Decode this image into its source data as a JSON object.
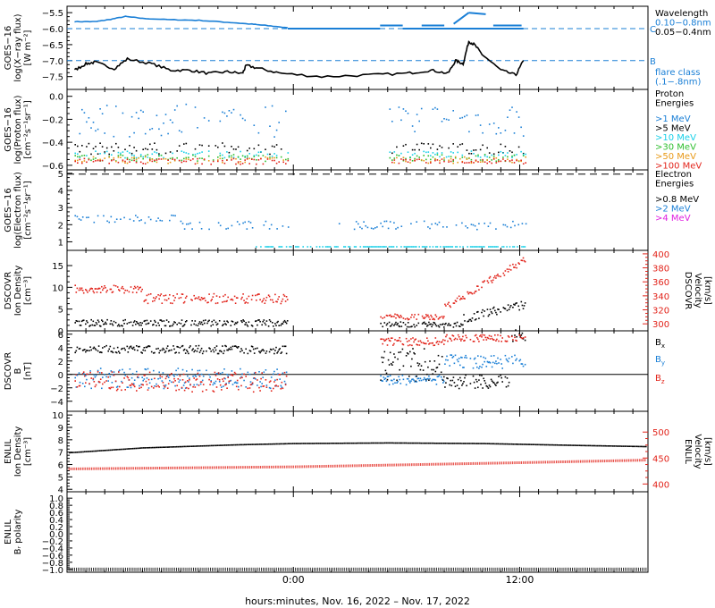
{
  "figure": {
    "xlabel": "hours:minutes, Nov. 16, 2022 – Nov. 17, 2022",
    "x_ticks": [
      "0:00",
      "12:00"
    ]
  },
  "colors": {
    "blue": "#1a7fd6",
    "cyan": "#19d0e8",
    "green": "#2fbf2f",
    "orange": "#e89a18",
    "red": "#e2231a",
    "magenta": "#e020e0",
    "black": "#000000"
  },
  "chart_data": [
    {
      "type": "line",
      "panel": "xray",
      "ylabel": [
        "GOES−16",
        "log(X−ray flux)",
        "[W m⁻²]"
      ],
      "y_ticks": [
        "−5.5",
        "−6.0",
        "−6.5",
        "−7.0",
        "−7.5"
      ],
      "ylim": [
        -7.9,
        -5.3
      ],
      "reference_lines": [
        {
          "y": -6.0,
          "label": "C"
        },
        {
          "y": -7.0,
          "label": "B"
        }
      ],
      "legend_title": "Wavelength",
      "series": [
        {
          "name": "0.10−0.8nm",
          "color": "#1a7fd6",
          "points": [
            [
              -11.6,
              -5.78
            ],
            [
              -10.5,
              -5.78
            ],
            [
              -9.8,
              -5.72
            ],
            [
              -8.9,
              -5.62
            ],
            [
              -8.0,
              -5.68
            ],
            [
              -6.5,
              -5.72
            ],
            [
              -5.0,
              -5.74
            ],
            [
              -3.5,
              -5.8
            ],
            [
              -2.2,
              -5.86
            ],
            [
              -1.5,
              -5.9
            ],
            [
              -0.3,
              -5.97
            ]
          ]
        },
        {
          "name": "0.05−0.4nm",
          "color": "#000000",
          "points": [
            [
              -11.6,
              -7.3
            ],
            [
              -11.0,
              -7.1
            ],
            [
              -10.5,
              -7.05
            ],
            [
              -9.5,
              -7.25
            ],
            [
              -8.8,
              -6.95
            ],
            [
              -7.5,
              -7.1
            ],
            [
              -6.5,
              -7.3
            ],
            [
              -5.5,
              -7.3
            ],
            [
              -4.5,
              -7.4
            ],
            [
              -3.5,
              -7.35
            ],
            [
              -2.7,
              -7.4
            ],
            [
              -2.5,
              -7.15
            ],
            [
              -1.8,
              -7.25
            ],
            [
              -0.6,
              -7.4
            ],
            [
              1.5,
              -7.5
            ],
            [
              4.0,
              -7.45
            ],
            [
              6.0,
              -7.4
            ],
            [
              7.3,
              -7.3
            ],
            [
              8.2,
              -7.4
            ],
            [
              8.6,
              -7.0
            ],
            [
              9.0,
              -7.1
            ],
            [
              9.3,
              -6.4
            ],
            [
              9.6,
              -6.5
            ],
            [
              10.0,
              -6.8
            ],
            [
              11.0,
              -7.3
            ],
            [
              11.8,
              -7.45
            ],
            [
              12.2,
              -7.0
            ]
          ]
        }
      ],
      "segments": [
        {
          "color": "#1a7fd6",
          "points": [
            [
              4.6,
              -5.9
            ],
            [
              5.8,
              -5.9
            ]
          ]
        },
        {
          "color": "#1a7fd6",
          "points": [
            [
              6.8,
              -5.9
            ],
            [
              8.0,
              -5.9
            ]
          ]
        },
        {
          "color": "#1a7fd6",
          "points": [
            [
              8.5,
              -5.85
            ],
            [
              9.3,
              -5.5
            ]
          ]
        },
        {
          "color": "#1a7fd6",
          "points": [
            [
              9.3,
              -5.5
            ],
            [
              10.2,
              -5.55
            ]
          ]
        },
        {
          "color": "#1a7fd6",
          "points": [
            [
              10.6,
              -5.9
            ],
            [
              12.1,
              -5.9
            ]
          ]
        },
        {
          "color": "#1a7fd6",
          "points": [
            [
              -0.3,
              -6.0
            ],
            [
              4.6,
              -6.0
            ]
          ]
        },
        {
          "color": "#1a7fd6",
          "points": [
            [
              5.8,
              -6.0
            ],
            [
              12.2,
              -6.0
            ]
          ]
        }
      ],
      "flare_class_label": [
        "flare class",
        "(.1−.8nm)"
      ]
    },
    {
      "type": "scatter",
      "panel": "proton",
      "ylabel": [
        "GOES−16",
        "log(Proton flux)",
        "[cm⁻²s⁻¹sr⁻¹]"
      ],
      "y_ticks": [
        "0.0",
        "−0.2",
        "−0.4",
        "−0.6"
      ],
      "y_tick_values": [
        0.0,
        -0.2,
        -0.4,
        -0.6
      ],
      "ylim": [
        -0.64,
        0.06
      ],
      "legend_title": [
        "Proton",
        "Energies"
      ],
      "series": [
        {
          "name": ">1 MeV",
          "color": "#1a7fd6",
          "center": -0.2,
          "spread": 0.15
        },
        {
          "name": ">5 MeV",
          "color": "#000000",
          "center": -0.45,
          "spread": 0.05
        },
        {
          "name": ">10 MeV",
          "color": "#19d0e8",
          "center": -0.5,
          "spread": 0.03
        },
        {
          "name": ">30 MeV",
          "color": "#2fbf2f",
          "center": -0.53,
          "spread": 0.03
        },
        {
          "name": ">50 MeV",
          "color": "#e89a18",
          "center": -0.55,
          "spread": 0.03
        },
        {
          "name": ">100 MeV",
          "color": "#e2231a",
          "center": -0.56,
          "spread": 0.025
        }
      ]
    },
    {
      "type": "scatter",
      "panel": "electron",
      "ylabel": [
        "GOES−16",
        "log(Electron flux)",
        "[cm⁻²s⁻¹sr⁻¹]"
      ],
      "y_ticks": [
        "5",
        "4",
        "3",
        "2",
        "1"
      ],
      "y_tick_values": [
        5,
        4,
        3,
        2,
        1
      ],
      "ylim": [
        0.5,
        5.2
      ],
      "reference_lines": [
        {
          "y": 4.95
        }
      ],
      "legend_title": [
        "Electron",
        "Energies"
      ],
      "series": [
        {
          "name": ">0.8 MeV",
          "color": "#000000",
          "center": 4.95,
          "spread": 0
        },
        {
          "name": ">2 MeV",
          "color": "#1a7fd6",
          "center": 2.0,
          "spread": 0.3
        },
        {
          "name": ">4 MeV",
          "color": "#e020e0",
          "center": 0.6,
          "spread": 0
        }
      ]
    },
    {
      "type": "scatter",
      "panel": "dscovr_density",
      "ylabel": [
        "DSCOVR",
        "Ion Density",
        "[cm⁻³]"
      ],
      "y_ticks": [
        "15",
        "10",
        "5",
        "0"
      ],
      "y_tick_values": [
        15,
        10,
        5,
        0
      ],
      "ylim": [
        0,
        18.5
      ],
      "right_ylabel": [
        "DSCOVR",
        "Velocity",
        "[km/s]"
      ],
      "right_ticks": [
        "400",
        "380",
        "360",
        "340",
        "320",
        "300"
      ],
      "right_tick_values": [
        400,
        380,
        360,
        340,
        320,
        300
      ],
      "right_ylim": [
        290,
        405
      ],
      "series": [
        {
          "name": "Ion Density",
          "color": "#000000",
          "axis": "left"
        },
        {
          "name": "Velocity",
          "color": "#e2231a",
          "axis": "right"
        }
      ]
    },
    {
      "type": "scatter",
      "panel": "dscovr_b",
      "ylabel": [
        "DSCOVR",
        "B",
        "[nT]"
      ],
      "y_ticks": [
        "6",
        "4",
        "2",
        "0",
        "−2",
        "−4"
      ],
      "y_tick_values": [
        6,
        4,
        2,
        0,
        -2,
        -4
      ],
      "ylim": [
        -5.5,
        6.5
      ],
      "zero_line": true,
      "series": [
        {
          "name": "B",
          "sub": "x",
          "color": "#000000"
        },
        {
          "name": "B",
          "sub": "y",
          "color": "#1a7fd6"
        },
        {
          "name": "B",
          "sub": "z",
          "color": "#e2231a"
        }
      ]
    },
    {
      "type": "line",
      "panel": "enlil_density",
      "ylabel": [
        "ENLIL",
        "Ion Density",
        "[cm⁻³]"
      ],
      "y_ticks": [
        "10",
        "9",
        "8",
        "7",
        "6",
        "5",
        "4"
      ],
      "y_tick_values": [
        10,
        9,
        8,
        7,
        6,
        5,
        4
      ],
      "ylim": [
        3.8,
        10.3
      ],
      "right_ylabel": [
        "ENLIL",
        "Velocity",
        "[km/s]"
      ],
      "right_ticks": [
        "500",
        "450",
        "400"
      ],
      "right_tick_values": [
        500,
        450,
        400
      ],
      "right_ylim": [
        385,
        540
      ],
      "series": [
        {
          "name": "Ion Density",
          "color": "#000000",
          "axis": "left",
          "points": [
            [
              -12,
              7.0
            ],
            [
              -8,
              7.4
            ],
            [
              -3,
              7.65
            ],
            [
              0,
              7.75
            ],
            [
              5,
              7.8
            ],
            [
              10,
              7.75
            ],
            [
              15,
              7.6
            ],
            [
              18.8,
              7.5
            ]
          ]
        },
        {
          "name": "Velocity",
          "color": "#e2231a",
          "axis": "right",
          "points": [
            [
              -12,
              429
            ],
            [
              -6,
              431
            ],
            [
              0,
              433
            ],
            [
              6,
              437
            ],
            [
              12,
              441
            ],
            [
              18.8,
              446
            ]
          ]
        }
      ]
    },
    {
      "type": "line",
      "panel": "enlil_polarity",
      "ylabel": [
        "ENLIL",
        "Bᵣ polarity"
      ],
      "y_ticks": [
        "1.0",
        "0.8",
        "0.6",
        "0.4",
        "0.2",
        "0.0",
        "−0.2",
        "−0.4",
        "−0.6",
        "−0.8",
        "−1.0"
      ],
      "y_tick_values": [
        1.0,
        0.8,
        0.6,
        0.4,
        0.2,
        0.0,
        -0.2,
        -0.4,
        -0.6,
        -0.8,
        -1.0
      ],
      "ylim": [
        -1.08,
        1.18
      ],
      "series": [
        {
          "name": "Bᵣ polarity",
          "color": "#000000",
          "points": [
            [
              -12,
              -1.0
            ],
            [
              18.8,
              -1.0
            ]
          ]
        }
      ]
    }
  ]
}
